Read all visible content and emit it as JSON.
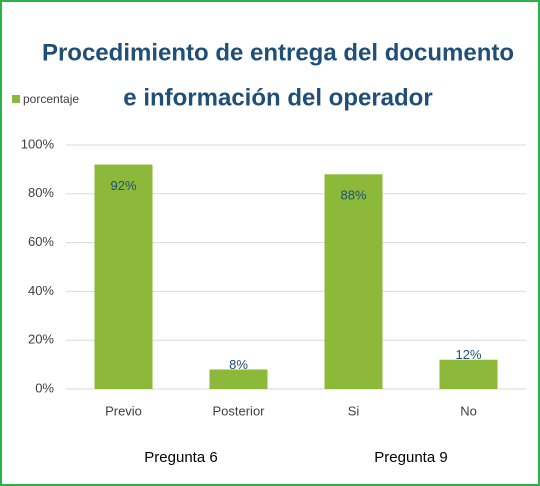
{
  "chart_data": {
    "type": "bar",
    "title": [
      "Procedimiento de entrega del documento",
      "e información del operador"
    ],
    "series": [
      {
        "name": "porcentaje",
        "color": "#8db93a",
        "values": [
          92,
          8,
          88,
          12
        ],
        "value_labels": [
          "92%",
          "8%",
          "88%",
          "12%"
        ]
      }
    ],
    "categories": [
      "Previo",
      "Posterior",
      "Si",
      "No"
    ],
    "group_labels": [
      "Pregunta 6",
      "Pregunta 9"
    ],
    "ylim": [
      0,
      100
    ],
    "yticks": [
      {
        "value": 0,
        "label": "0%"
      },
      {
        "value": 20,
        "label": "20%"
      },
      {
        "value": 40,
        "label": "40%"
      },
      {
        "value": 60,
        "label": "60%"
      },
      {
        "value": 80,
        "label": "80%"
      },
      {
        "value": 100,
        "label": "100%"
      }
    ],
    "grid": true,
    "legend": "top-left"
  }
}
